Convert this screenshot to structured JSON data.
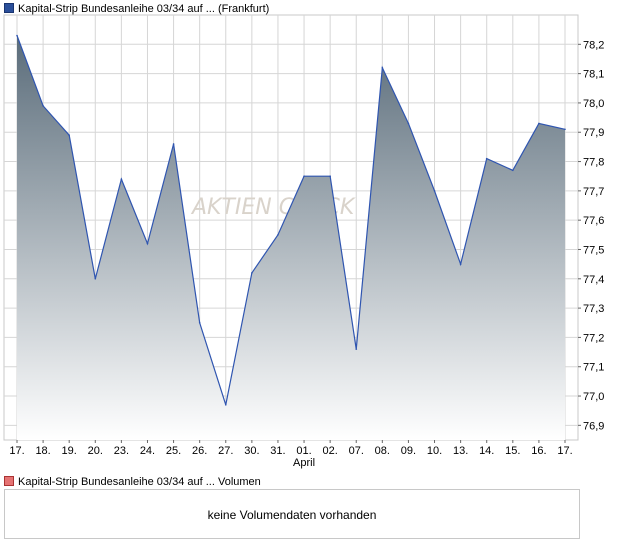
{
  "chart_data": {
    "type": "area",
    "legend": [
      "Kapital-Strip Bundesanleihe 03/34 auf ... (Frankfurt)",
      "Kapital-Strip Bundesanleihe 03/34 auf ... Volumen"
    ],
    "x_labels": [
      "17.",
      "18.",
      "19.",
      "20.",
      "23.",
      "24.",
      "25.",
      "26.",
      "27.",
      "30.",
      "31.",
      "01.",
      "02.",
      "07.",
      "08.",
      "09.",
      "10.",
      "13.",
      "14.",
      "15.",
      "16.",
      "17."
    ],
    "x_month_label": "April",
    "x_month_label_at": "01.",
    "y_ticks": [
      76.9,
      77.0,
      77.1,
      77.2,
      77.3,
      77.4,
      77.5,
      77.6,
      77.7,
      77.8,
      77.9,
      78.0,
      78.1,
      78.2
    ],
    "y_tick_labels": [
      "76,9",
      "77,0",
      "77,1",
      "77,2",
      "77,3",
      "77,4",
      "77,5",
      "77,6",
      "77,7",
      "77,8",
      "77,9",
      "78,0",
      "78,1",
      "78,2"
    ],
    "ylim": [
      76.85,
      78.3
    ],
    "series": [
      {
        "values": [
          78.23,
          77.99,
          77.89,
          77.4,
          77.74,
          77.52,
          77.86,
          77.25,
          76.97,
          77.42,
          77.55,
          77.75,
          77.75,
          77.16,
          78.12,
          77.93,
          77.7,
          77.45,
          77.81,
          77.77,
          77.93,
          77.91
        ]
      }
    ],
    "grid": true,
    "volume_message": "keine Volumendaten vorhanden",
    "colors": {
      "line": "#2f55b0",
      "fill_top": "#5a6c7a",
      "fill_bottom": "#ffffff",
      "grid": "#d6d6d6"
    }
  },
  "watermark": "AKTIEN CHECK"
}
